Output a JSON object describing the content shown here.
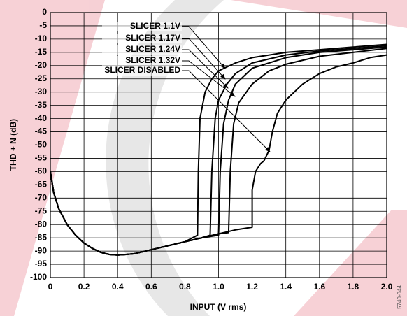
{
  "chart_data": {
    "type": "line",
    "xlabel": "INPUT (V rms)",
    "ylabel": "THD + N (dB)",
    "figure_id": "5740-044",
    "xlim": [
      0,
      2.0
    ],
    "ylim": [
      -100,
      0
    ],
    "xticks": [
      0,
      0.2,
      0.4,
      0.6,
      0.8,
      {
        "value": 1.0,
        "label": "1.0"
      },
      1.2,
      1.4,
      1.6,
      1.8,
      {
        "value": 2.0,
        "label": "2.0"
      }
    ],
    "yticks": [
      0,
      -5,
      -10,
      -15,
      -20,
      -25,
      -30,
      -35,
      -40,
      -45,
      -50,
      -55,
      -60,
      -65,
      -70,
      -75,
      -80,
      -85,
      -90,
      -95,
      -100
    ],
    "grid": true,
    "series": [
      {
        "name": "SLICER 1.1V",
        "color": "#000000",
        "x": [
          0,
          0.02,
          0.05,
          0.1,
          0.15,
          0.2,
          0.25,
          0.3,
          0.35,
          0.4,
          0.45,
          0.5,
          0.6,
          0.7,
          0.8,
          0.875,
          0.88,
          0.89,
          0.92,
          0.96,
          1.0,
          1.1,
          1.2,
          1.4,
          1.6,
          1.8,
          2.0
        ],
        "values": [
          -60,
          -68,
          -74,
          -80,
          -84,
          -87,
          -89,
          -90.5,
          -91.3,
          -91.5,
          -91.3,
          -91,
          -89.5,
          -88,
          -86.5,
          -84,
          -60,
          -40,
          -30,
          -25,
          -22,
          -19,
          -17,
          -15,
          -14,
          -13,
          -12
        ]
      },
      {
        "name": "SLICER 1.17V",
        "color": "#000000",
        "x": [
          0,
          0.02,
          0.05,
          0.1,
          0.15,
          0.2,
          0.25,
          0.3,
          0.35,
          0.4,
          0.45,
          0.5,
          0.6,
          0.7,
          0.8,
          0.9,
          0.95,
          0.96,
          0.98,
          1.0,
          1.05,
          1.1,
          1.2,
          1.4,
          1.6,
          1.8,
          2.0
        ],
        "values": [
          -60,
          -68,
          -74,
          -80,
          -84,
          -87,
          -89,
          -90.5,
          -91.3,
          -91.5,
          -91.3,
          -91,
          -89.5,
          -88,
          -86.5,
          -85,
          -84,
          -60,
          -40,
          -33,
          -27,
          -23,
          -19,
          -16,
          -14.5,
          -13.5,
          -12.5
        ]
      },
      {
        "name": "SLICER 1.24V",
        "color": "#000000",
        "x": [
          0,
          0.02,
          0.05,
          0.1,
          0.15,
          0.2,
          0.25,
          0.3,
          0.35,
          0.4,
          0.45,
          0.5,
          0.6,
          0.7,
          0.8,
          0.9,
          1.0,
          1.01,
          1.03,
          1.06,
          1.1,
          1.2,
          1.4,
          1.6,
          1.8,
          2.0
        ],
        "values": [
          -60,
          -68,
          -74,
          -80,
          -84,
          -87,
          -89,
          -90.5,
          -91.3,
          -91.5,
          -91.3,
          -91,
          -89.5,
          -88,
          -86.5,
          -85,
          -84,
          -60,
          -42,
          -33,
          -27,
          -21,
          -17,
          -15,
          -14,
          -13
        ]
      },
      {
        "name": "SLICER 1.32V",
        "color": "#000000",
        "x": [
          0,
          0.02,
          0.05,
          0.1,
          0.15,
          0.2,
          0.25,
          0.3,
          0.35,
          0.4,
          0.45,
          0.5,
          0.6,
          0.7,
          0.8,
          0.9,
          1.0,
          1.06,
          1.07,
          1.09,
          1.12,
          1.2,
          1.3,
          1.4,
          1.6,
          1.8,
          2.0
        ],
        "values": [
          -60,
          -68,
          -74,
          -80,
          -84,
          -87,
          -89,
          -90.5,
          -91.3,
          -91.5,
          -91.3,
          -91,
          -89.5,
          -88,
          -86.5,
          -85,
          -83.5,
          -83,
          -60,
          -42,
          -34,
          -27,
          -22,
          -19.5,
          -16.5,
          -15,
          -13.5
        ]
      },
      {
        "name": "SLICER DISABLED",
        "color": "#000000",
        "x": [
          0,
          0.02,
          0.05,
          0.1,
          0.15,
          0.2,
          0.25,
          0.3,
          0.35,
          0.4,
          0.45,
          0.5,
          0.6,
          0.7,
          0.8,
          0.9,
          1.0,
          1.1,
          1.2,
          1.2,
          1.22,
          1.25,
          1.27,
          1.3,
          1.32,
          1.35,
          1.4,
          1.5,
          1.6,
          1.7,
          1.8,
          1.9,
          2.0
        ],
        "values": [
          -60,
          -68,
          -74,
          -80,
          -84,
          -87,
          -89,
          -90.5,
          -91.3,
          -91.5,
          -91.3,
          -91,
          -89.5,
          -88,
          -86.5,
          -85,
          -83.5,
          -82,
          -81,
          -67,
          -60,
          -57,
          -56,
          -52,
          -45,
          -38,
          -33,
          -27,
          -23,
          -20.5,
          -19,
          -17,
          -16
        ]
      }
    ]
  }
}
